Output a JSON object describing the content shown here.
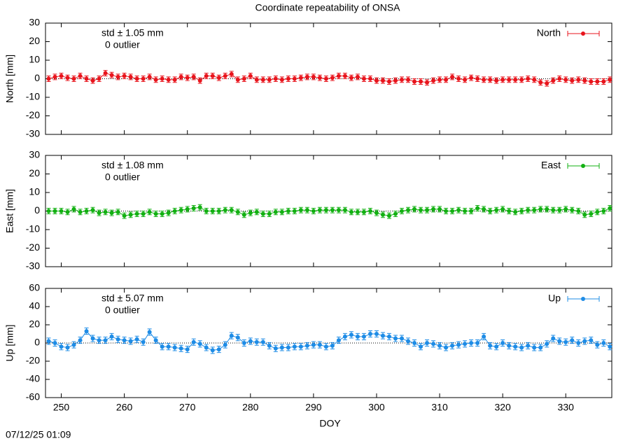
{
  "title": "Coordinate repeatability of ONSA",
  "timestamp": "07/12/25 01:09",
  "chart_data": [
    {
      "type": "errorbar",
      "ylabel": "North [mm]",
      "annotation": "std ± 1.05 mm",
      "note": "0 outlier",
      "color": "#e8141c",
      "error": 1.5,
      "zero_line": true,
      "legend": "top-right",
      "xlim": [
        247.5,
        337.3
      ],
      "xticks": [
        250,
        260,
        270,
        280,
        290,
        300,
        310,
        320,
        330
      ],
      "ylim": [
        -30,
        30
      ],
      "yticks": [
        -30,
        -20,
        -10,
        0,
        10,
        20,
        30
      ],
      "x": [
        248,
        249,
        250,
        251,
        252,
        253,
        254,
        255,
        256,
        257,
        258,
        259,
        260,
        261,
        262,
        263,
        264,
        265,
        266,
        267,
        268,
        269,
        270,
        271,
        272,
        273,
        274,
        275,
        276,
        277,
        278,
        279,
        280,
        281,
        282,
        283,
        284,
        285,
        286,
        287,
        288,
        289,
        290,
        291,
        292,
        293,
        294,
        295,
        296,
        297,
        298,
        299,
        300,
        301,
        302,
        303,
        304,
        305,
        306,
        307,
        308,
        309,
        310,
        311,
        312,
        313,
        314,
        315,
        316,
        317,
        318,
        319,
        320,
        321,
        322,
        323,
        324,
        325,
        326,
        327,
        328,
        329,
        330,
        331,
        332,
        333,
        334,
        335,
        336,
        337
      ],
      "series": [
        {
          "name": "North",
          "values": [
            0,
            1,
            1.5,
            0.5,
            0,
            1.5,
            0,
            -1,
            0,
            3,
            2,
            1,
            1.5,
            1,
            0,
            0,
            1,
            -0.5,
            0,
            -0.5,
            -0.5,
            1,
            0.5,
            1,
            -1,
            1.5,
            1.5,
            0.5,
            1.5,
            2.5,
            -0.5,
            0,
            1.5,
            -0.5,
            -0.5,
            -0.5,
            0,
            -0.5,
            0,
            0,
            0.5,
            1,
            1,
            0.5,
            0,
            0.5,
            1.5,
            1.5,
            0.5,
            1,
            0,
            0,
            -1,
            -1,
            -1.5,
            -1,
            -0.5,
            -0.5,
            -1.5,
            -1.5,
            -2,
            -1,
            -0.5,
            -0.5,
            1,
            0,
            -0.5,
            0.5,
            0,
            -0.5,
            -0.5,
            -1,
            -0.5,
            -0.5,
            -0.5,
            -0.5,
            0,
            -0.5,
            -2,
            -2.5,
            -1,
            0,
            -0.5,
            -1,
            -0.5,
            -1,
            -1.5,
            -1.5,
            -1.5,
            -0.5
          ]
        }
      ]
    },
    {
      "type": "errorbar",
      "ylabel": "East [mm]",
      "annotation": "std ± 1.08 mm",
      "note": "0 outlier",
      "color": "#12b012",
      "error": 1.5,
      "zero_line": true,
      "legend": "top-right",
      "xlim": [
        247.5,
        337.3
      ],
      "xticks": [
        250,
        260,
        270,
        280,
        290,
        300,
        310,
        320,
        330
      ],
      "ylim": [
        -30,
        30
      ],
      "yticks": [
        -30,
        -20,
        -10,
        0,
        10,
        20,
        30
      ],
      "x": [
        248,
        249,
        250,
        251,
        252,
        253,
        254,
        255,
        256,
        257,
        258,
        259,
        260,
        261,
        262,
        263,
        264,
        265,
        266,
        267,
        268,
        269,
        270,
        271,
        272,
        273,
        274,
        275,
        276,
        277,
        278,
        279,
        280,
        281,
        282,
        283,
        284,
        285,
        286,
        287,
        288,
        289,
        290,
        291,
        292,
        293,
        294,
        295,
        296,
        297,
        298,
        299,
        300,
        301,
        302,
        303,
        304,
        305,
        306,
        307,
        308,
        309,
        310,
        311,
        312,
        313,
        314,
        315,
        316,
        317,
        318,
        319,
        320,
        321,
        322,
        323,
        324,
        325,
        326,
        327,
        328,
        329,
        330,
        331,
        332,
        333,
        334,
        335,
        336,
        337
      ],
      "series": [
        {
          "name": "East",
          "values": [
            0,
            0,
            0,
            -0.5,
            1,
            -0.5,
            0,
            0.5,
            -1,
            -0.5,
            -1,
            -0.5,
            -2.5,
            -2,
            -1.5,
            -1.5,
            -0.5,
            -1.5,
            -1.5,
            -1,
            0,
            0.5,
            1,
            1.5,
            2,
            0,
            0,
            0,
            0.5,
            0.5,
            -0.5,
            -2,
            -1,
            -0.5,
            -1.5,
            -1.5,
            -0.5,
            -0.5,
            0,
            0,
            0.5,
            0.5,
            0,
            0.5,
            0.5,
            0.5,
            0.5,
            0.5,
            -0.5,
            -0.5,
            -0.5,
            0,
            -1,
            -2,
            -2.5,
            -1.5,
            0,
            0.5,
            1,
            0.5,
            0.5,
            1,
            1,
            0,
            0,
            0.5,
            0,
            0,
            1.5,
            1,
            0,
            0.5,
            1,
            0,
            -0.5,
            0,
            0.5,
            0.5,
            1,
            1,
            0.5,
            0.5,
            1,
            0.5,
            0,
            -2,
            -1.5,
            -0.5,
            0,
            1.5
          ]
        }
      ]
    },
    {
      "type": "errorbar",
      "ylabel": "Up [mm]",
      "xlabel": "DOY",
      "annotation": "std ± 5.07 mm",
      "note": "0 outlier",
      "color": "#1e8ce6",
      "error": 3.5,
      "zero_line": true,
      "legend": "top-right",
      "xlim": [
        247.5,
        337.3
      ],
      "xticks": [
        250,
        260,
        270,
        280,
        290,
        300,
        310,
        320,
        330
      ],
      "ylim": [
        -60,
        60
      ],
      "yticks": [
        -60,
        -40,
        -20,
        0,
        20,
        40,
        60
      ],
      "x": [
        248,
        249,
        250,
        251,
        252,
        253,
        254,
        255,
        256,
        257,
        258,
        259,
        260,
        261,
        262,
        263,
        264,
        265,
        266,
        267,
        268,
        269,
        270,
        271,
        272,
        273,
        274,
        275,
        276,
        277,
        278,
        279,
        280,
        281,
        282,
        283,
        284,
        285,
        286,
        287,
        288,
        289,
        290,
        291,
        292,
        293,
        294,
        295,
        296,
        297,
        298,
        299,
        300,
        301,
        302,
        303,
        304,
        305,
        306,
        307,
        308,
        309,
        310,
        311,
        312,
        313,
        314,
        315,
        316,
        317,
        318,
        319,
        320,
        321,
        322,
        323,
        324,
        325,
        326,
        327,
        328,
        329,
        330,
        331,
        332,
        333,
        334,
        335,
        336,
        337
      ],
      "series": [
        {
          "name": "Up",
          "values": [
            2,
            0,
            -4,
            -5,
            -2,
            3,
            13,
            5,
            3,
            3,
            7,
            4,
            3,
            2,
            4,
            1,
            12,
            3,
            -4,
            -4,
            -5,
            -6,
            -7,
            1,
            -1,
            -5,
            -8,
            -7,
            -2,
            8,
            6,
            0,
            2,
            1,
            1,
            -3,
            -6,
            -5,
            -5,
            -4,
            -4,
            -3,
            -2,
            -2,
            -4,
            -3,
            3,
            7,
            9,
            7,
            7,
            10,
            10,
            8,
            7,
            5,
            5,
            2,
            0,
            -4,
            0,
            -1,
            -3,
            -5,
            -3,
            -2,
            -1,
            0,
            0,
            7,
            -3,
            -4,
            0,
            -3,
            -4,
            -5,
            -3,
            -5,
            -5,
            -1,
            5,
            2,
            1,
            3,
            0,
            2,
            3,
            -2,
            0,
            -4
          ]
        }
      ]
    }
  ]
}
